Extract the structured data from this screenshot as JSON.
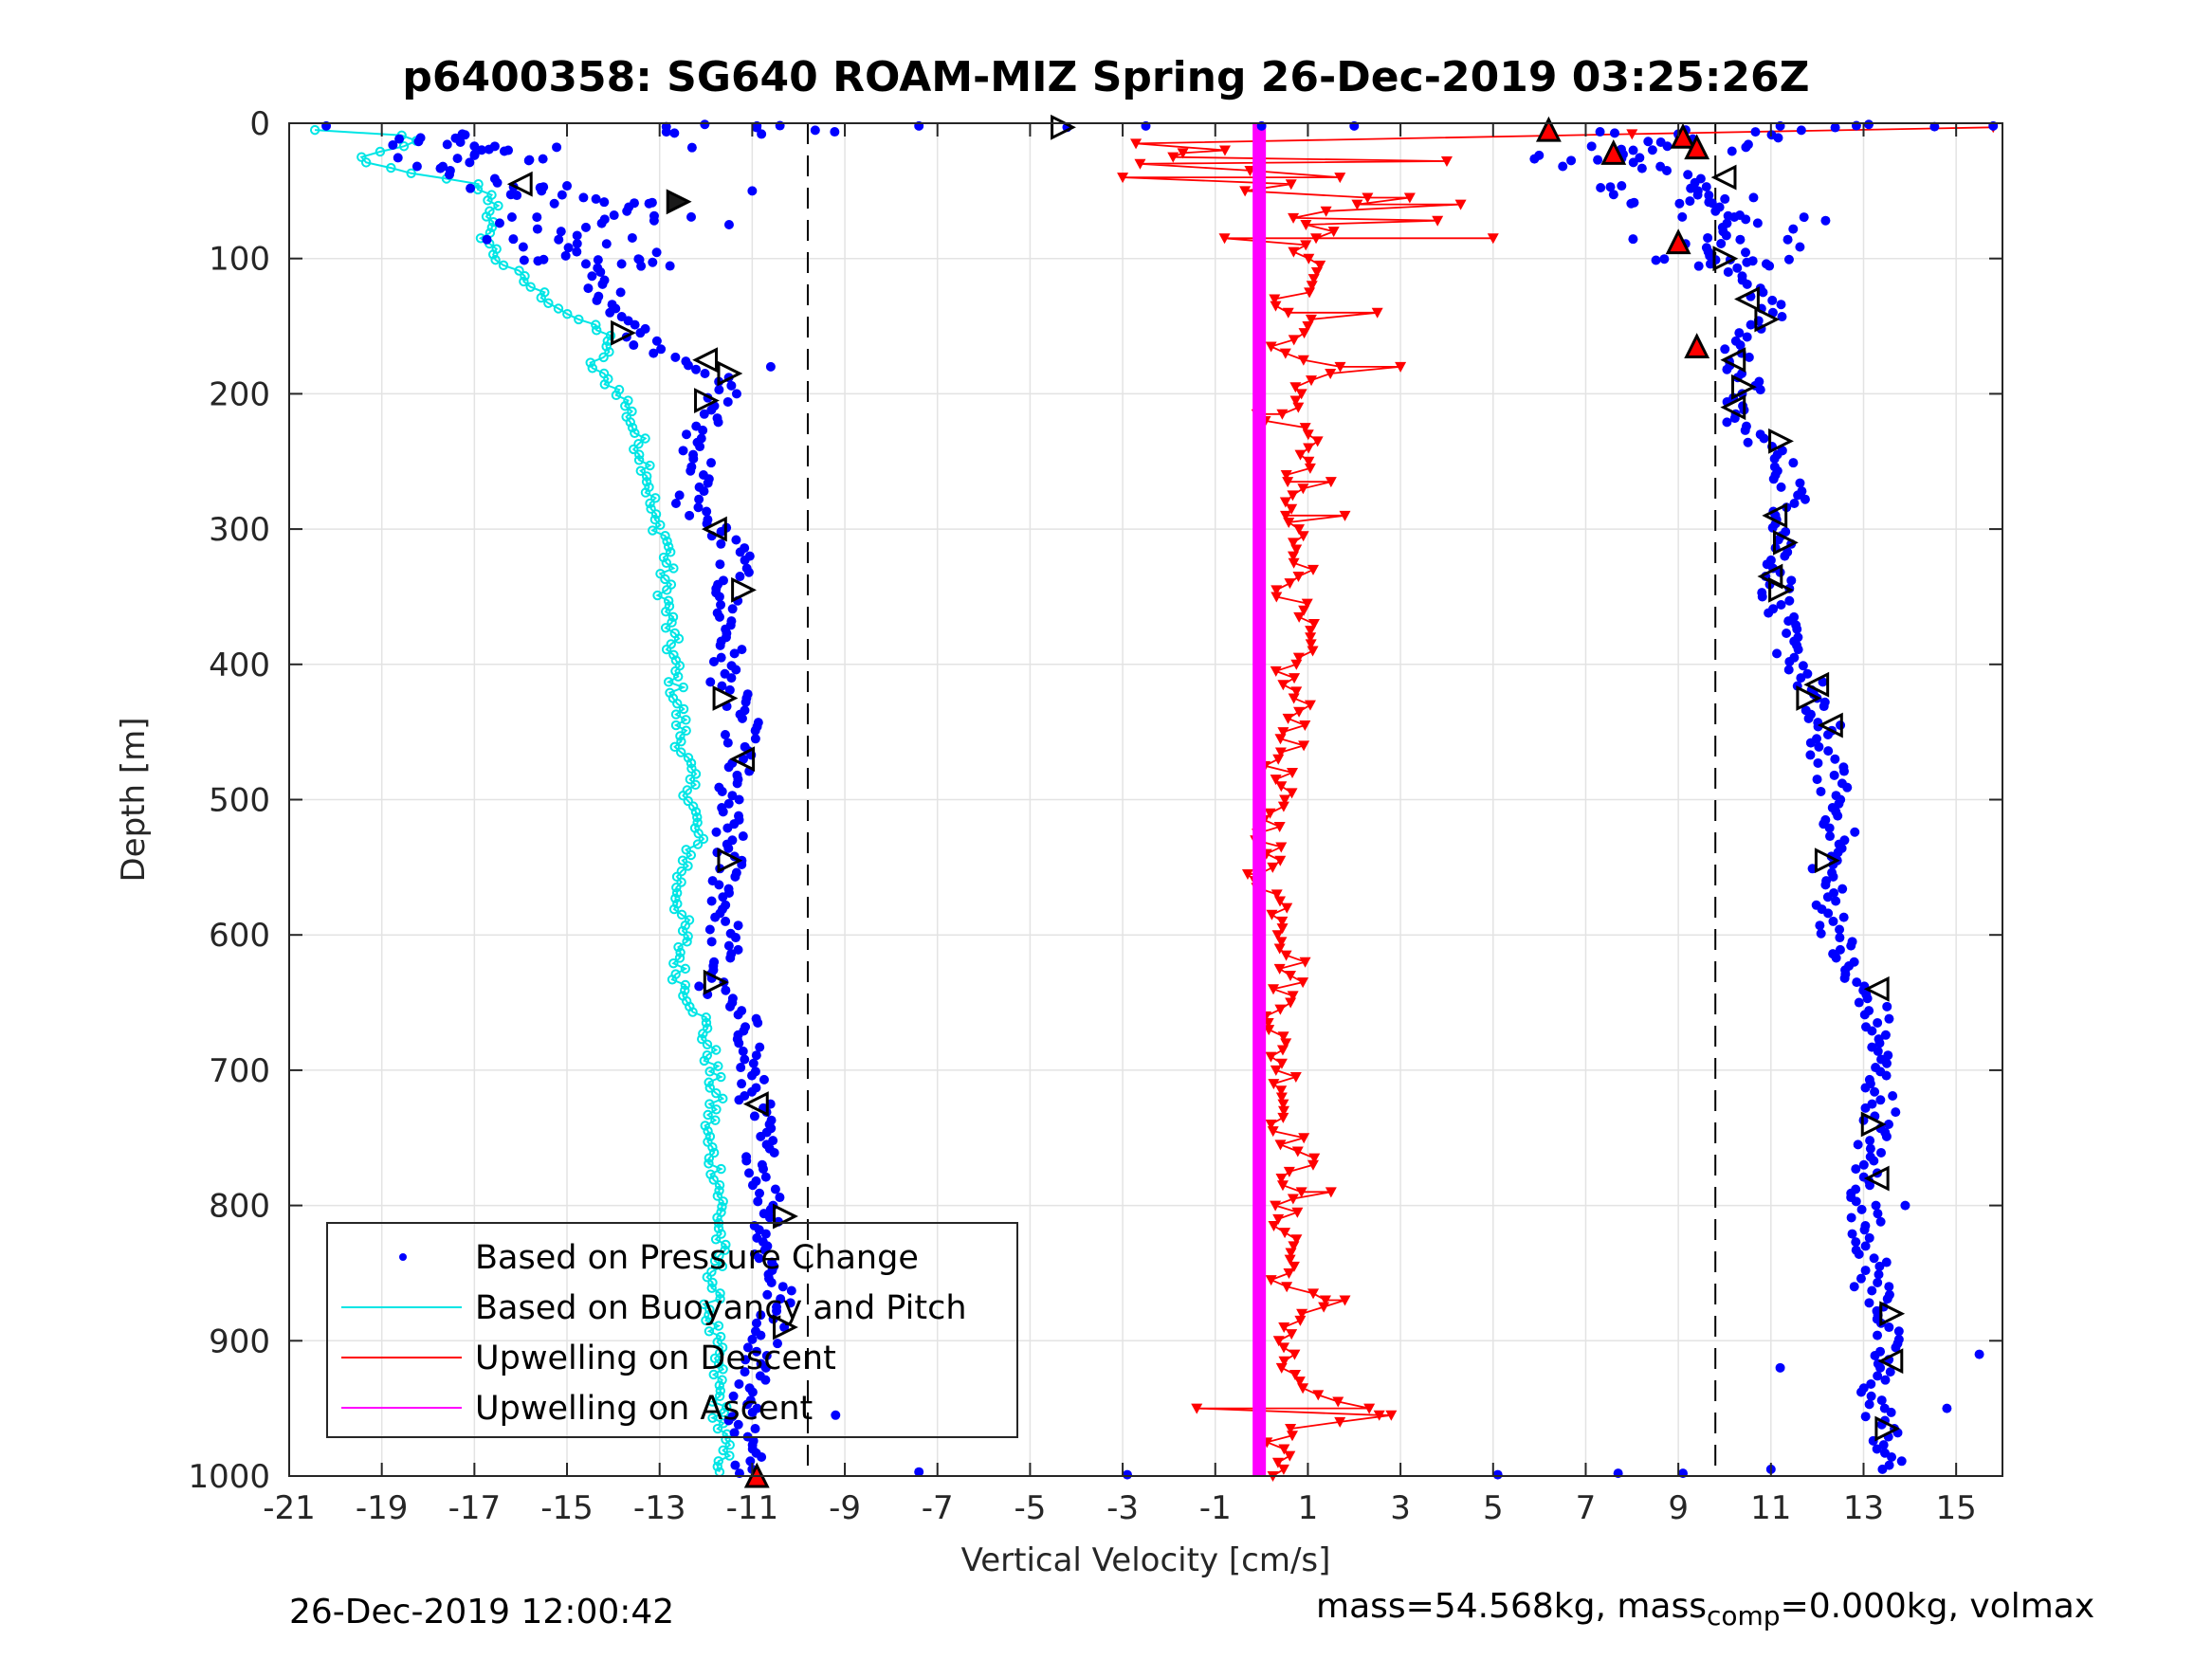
{
  "title": "p6400358: SG640 ROAM-MIZ Spring 26-Dec-2019 03:25:26Z",
  "footer_left": "26-Dec-2019 12:00:42",
  "footer_right": {
    "prefix": "mass=54.568kg, mass",
    "subscript": "comp",
    "suffix": "=0.000kg, volmax"
  },
  "colors": {
    "pressure": "#0000ff",
    "buoyancy": "#00e5e5",
    "descent": "#ff0000",
    "ascent": "#ff00ff"
  },
  "chart_data": {
    "type": "scatter",
    "xlabel": "Vertical Velocity [cm/s]",
    "ylabel": "Depth [m]",
    "xlim": [
      -21,
      16
    ],
    "ylim": [
      0,
      1000
    ],
    "y_reversed": true,
    "grid": true,
    "xticks": [
      "-21",
      "-19",
      "-17",
      "-15",
      "-13",
      "-11",
      "-9",
      "-7",
      "-5",
      "-3",
      "-1",
      "1",
      "3",
      "5",
      "7",
      "9",
      "11",
      "13",
      "15"
    ],
    "yticks": [
      "0",
      "100",
      "200",
      "300",
      "400",
      "500",
      "600",
      "700",
      "800",
      "900",
      "1000"
    ],
    "reference_lines_x": [
      -9.8,
      9.8
    ],
    "legend_position": "bottom-left",
    "legend": [
      "Based on Pressure Change",
      "Based on Buoyancy and Pitch",
      "Upwelling on Descent",
      "Upwelling on Ascent"
    ],
    "series": [
      {
        "name": "Based on Pressure Change",
        "descent_profile": [
          [
            -17.5,
            8
          ],
          [
            -16.5,
            20
          ],
          [
            -17.8,
            35
          ],
          [
            -15.5,
            50
          ],
          [
            -13.5,
            60
          ],
          [
            -15.0,
            80
          ],
          [
            -14.5,
            110
          ],
          [
            -13.8,
            140
          ],
          [
            -13.2,
            165
          ],
          [
            -12.0,
            180
          ],
          [
            -11.6,
            200
          ],
          [
            -12.2,
            230
          ],
          [
            -12.1,
            260
          ],
          [
            -12.4,
            280
          ],
          [
            -11.8,
            300
          ],
          [
            -11.3,
            320
          ],
          [
            -11.6,
            350
          ],
          [
            -11.5,
            380
          ],
          [
            -11.6,
            410
          ],
          [
            -11.2,
            440
          ],
          [
            -11.3,
            470
          ],
          [
            -11.6,
            500
          ],
          [
            -11.5,
            540
          ],
          [
            -11.6,
            580
          ],
          [
            -11.6,
            610
          ],
          [
            -11.9,
            640
          ],
          [
            -11.0,
            670
          ],
          [
            -11.1,
            700
          ],
          [
            -10.9,
            730
          ],
          [
            -10.8,
            760
          ],
          [
            -10.7,
            790
          ],
          [
            -10.5,
            805
          ],
          [
            -10.8,
            830
          ],
          [
            -10.4,
            860
          ],
          [
            -10.6,
            890
          ],
          [
            -11.0,
            930
          ],
          [
            -11.2,
            960
          ],
          [
            -11.0,
            1000
          ]
        ],
        "ascent_profile": [
          [
            9.5,
            5
          ],
          [
            8.0,
            25
          ],
          [
            9.2,
            40
          ],
          [
            10.0,
            60
          ],
          [
            10.3,
            80
          ],
          [
            9.5,
            100
          ],
          [
            10.8,
            120
          ],
          [
            11.0,
            140
          ],
          [
            10.2,
            165
          ],
          [
            10.4,
            185
          ],
          [
            10.5,
            200
          ],
          [
            10.0,
            215
          ],
          [
            11.0,
            240
          ],
          [
            11.5,
            270
          ],
          [
            11.3,
            300
          ],
          [
            11.2,
            330
          ],
          [
            11.1,
            360
          ],
          [
            11.4,
            390
          ],
          [
            11.8,
            410
          ],
          [
            11.9,
            440
          ],
          [
            12.2,
            470
          ],
          [
            12.4,
            500
          ],
          [
            12.5,
            530
          ],
          [
            12.2,
            550
          ],
          [
            12.3,
            580
          ],
          [
            12.5,
            610
          ],
          [
            12.6,
            630
          ],
          [
            13.2,
            650
          ],
          [
            13.3,
            680
          ],
          [
            13.3,
            710
          ],
          [
            13.4,
            730
          ],
          [
            13.1,
            760
          ],
          [
            13.0,
            790
          ],
          [
            13.1,
            820
          ],
          [
            13.2,
            850
          ],
          [
            13.5,
            880
          ],
          [
            13.4,
            910
          ],
          [
            13.2,
            940
          ],
          [
            13.5,
            970
          ],
          [
            13.5,
            995
          ]
        ],
        "scattered_points": [
          [
            -20.2,
            2
          ],
          [
            -10.9,
            2
          ],
          [
            -7.4,
            2
          ],
          [
            -4.2,
            3
          ],
          [
            -2.5,
            2
          ],
          [
            0.0,
            2
          ],
          [
            2.0,
            2
          ],
          [
            11.2,
            2
          ],
          [
            15.8,
            2
          ],
          [
            -12.3,
            18
          ],
          [
            -10.8,
            8
          ],
          [
            -11.0,
            50
          ],
          [
            -11.5,
            75
          ],
          [
            -10.6,
            180
          ],
          [
            -9.2,
            955
          ],
          [
            -7.4,
            997
          ],
          [
            -2.9,
            999
          ],
          [
            5.1,
            999
          ],
          [
            7.7,
            998
          ],
          [
            9.1,
            998
          ],
          [
            11.0,
            995
          ],
          [
            12.5,
            445
          ],
          [
            13.9,
            800
          ],
          [
            15.5,
            910
          ],
          [
            14.8,
            950
          ],
          [
            12.8,
            860
          ],
          [
            11.2,
            920
          ]
        ]
      },
      {
        "name": "Based on Buoyancy and Pitch",
        "profile": [
          [
            -20.5,
            5
          ],
          [
            -18.0,
            10
          ],
          [
            -19.5,
            25
          ],
          [
            -18.8,
            35
          ],
          [
            -17.0,
            45
          ],
          [
            -16.5,
            60
          ],
          [
            -16.8,
            80
          ],
          [
            -16.5,
            100
          ],
          [
            -15.8,
            120
          ],
          [
            -15.0,
            140
          ],
          [
            -14.0,
            160
          ],
          [
            -14.5,
            180
          ],
          [
            -13.8,
            200
          ],
          [
            -13.5,
            230
          ],
          [
            -13.2,
            260
          ],
          [
            -13.2,
            290
          ],
          [
            -12.8,
            310
          ],
          [
            -12.9,
            340
          ],
          [
            -12.8,
            370
          ],
          [
            -12.7,
            400
          ],
          [
            -12.6,
            430
          ],
          [
            -12.5,
            460
          ],
          [
            -12.3,
            500
          ],
          [
            -12.2,
            530
          ],
          [
            -12.6,
            560
          ],
          [
            -12.5,
            600
          ],
          [
            -12.6,
            630
          ],
          [
            -12.1,
            660
          ],
          [
            -11.9,
            690
          ],
          [
            -11.8,
            720
          ],
          [
            -12.0,
            750
          ],
          [
            -11.7,
            780
          ],
          [
            -11.7,
            820
          ],
          [
            -11.8,
            850
          ],
          [
            -11.9,
            880
          ],
          [
            -11.8,
            910
          ],
          [
            -11.7,
            950
          ],
          [
            -11.6,
            1000
          ]
        ]
      },
      {
        "name": "Upwelling on Descent",
        "profile": [
          [
            -3.0,
            15
          ],
          [
            -1.0,
            20
          ],
          [
            -2.5,
            30
          ],
          [
            1.5,
            40
          ],
          [
            -0.5,
            50
          ],
          [
            2.5,
            55
          ],
          [
            0.5,
            70
          ],
          [
            1.8,
            80
          ],
          [
            0.8,
            95
          ],
          [
            1.5,
            110
          ],
          [
            0.5,
            130
          ],
          [
            1.0,
            150
          ],
          [
            0.3,
            170
          ],
          [
            1.6,
            180
          ],
          [
            0.8,
            200
          ],
          [
            0.4,
            220
          ],
          [
            1.2,
            240
          ],
          [
            0.6,
            260
          ],
          [
            0.5,
            290
          ],
          [
            1.0,
            320
          ],
          [
            0.6,
            350
          ],
          [
            0.9,
            380
          ],
          [
            0.5,
            410
          ],
          [
            0.9,
            440
          ],
          [
            0.4,
            470
          ],
          [
            0.3,
            500
          ],
          [
            0.2,
            530
          ],
          [
            0.1,
            560
          ],
          [
            0.6,
            590
          ],
          [
            0.7,
            620
          ],
          [
            0.5,
            650
          ],
          [
            0.3,
            680
          ],
          [
            0.6,
            710
          ],
          [
            0.5,
            740
          ],
          [
            0.9,
            770
          ],
          [
            0.4,
            800
          ],
          [
            0.7,
            830
          ],
          [
            0.5,
            860
          ],
          [
            1.2,
            870
          ],
          [
            0.5,
            900
          ],
          [
            0.5,
            930
          ],
          [
            2.5,
            955
          ],
          [
            0.3,
            965
          ],
          [
            0.5,
            990
          ],
          [
            0.5,
            1000
          ]
        ],
        "excursions": [
          [
            15.8,
            3
          ],
          [
            8.0,
            8
          ],
          [
            -1.7,
            22
          ],
          [
            4.0,
            28
          ],
          [
            -3.0,
            40
          ],
          [
            3.2,
            55
          ],
          [
            4.3,
            60
          ],
          [
            3.8,
            72
          ],
          [
            5.0,
            85
          ],
          [
            -0.8,
            85
          ],
          [
            2.5,
            140
          ],
          [
            3.0,
            180
          ],
          [
            1.5,
            265
          ],
          [
            1.8,
            290
          ],
          [
            -0.1,
            215
          ],
          [
            1.5,
            790
          ],
          [
            1.8,
            870
          ],
          [
            -1.4,
            950
          ],
          [
            2.8,
            955
          ],
          [
            -0.3,
            555
          ]
        ]
      },
      {
        "name": "Upwelling on Ascent",
        "x": -0.05,
        "y_range": [
          0,
          1000
        ]
      }
    ],
    "markers": {
      "descent_triangles": [
        [
          -16.0,
          45
        ],
        [
          -12.6,
          58
        ],
        [
          -13.8,
          155
        ],
        [
          -12.0,
          175
        ],
        [
          -11.5,
          185
        ],
        [
          -12.0,
          205
        ],
        [
          -11.8,
          300
        ],
        [
          -11.2,
          345
        ],
        [
          -11.6,
          425
        ],
        [
          -11.2,
          470
        ],
        [
          -11.5,
          545
        ],
        [
          -11.8,
          635
        ],
        [
          -10.9,
          725
        ],
        [
          -10.3,
          808
        ],
        [
          -10.3,
          890
        ],
        [
          -10.9,
          1000
        ]
      ],
      "ascent_triangles": [
        [
          -4.3,
          3
        ],
        [
          6.2,
          5
        ],
        [
          7.6,
          22
        ],
        [
          9.1,
          10
        ],
        [
          9.4,
          18
        ],
        [
          9.0,
          88
        ],
        [
          9.4,
          165
        ],
        [
          10.0,
          40
        ],
        [
          10.0,
          100
        ],
        [
          10.5,
          130
        ],
        [
          10.9,
          145
        ],
        [
          10.2,
          175
        ],
        [
          10.4,
          195
        ],
        [
          10.2,
          210
        ],
        [
          11.2,
          235
        ],
        [
          11.1,
          290
        ],
        [
          11.3,
          310
        ],
        [
          11.0,
          335
        ],
        [
          11.2,
          345
        ],
        [
          12.0,
          415
        ],
        [
          11.8,
          425
        ],
        [
          12.3,
          445
        ],
        [
          12.2,
          545
        ],
        [
          13.3,
          640
        ],
        [
          13.2,
          740
        ],
        [
          13.3,
          780
        ],
        [
          13.6,
          880
        ],
        [
          13.6,
          915
        ],
        [
          13.5,
          965
        ]
      ]
    }
  }
}
